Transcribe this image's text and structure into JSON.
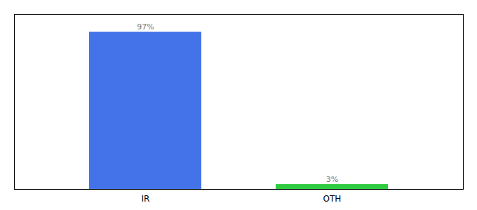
{
  "chart_data": {
    "type": "bar",
    "categories": [
      "IR",
      "OTH"
    ],
    "values": [
      97,
      3
    ],
    "value_labels": [
      "97%",
      "3%"
    ],
    "colors": [
      "#4472e8",
      "#2ecc40"
    ],
    "ylim": [
      0,
      108
    ],
    "data_labels": true,
    "tick_labels": "x"
  }
}
